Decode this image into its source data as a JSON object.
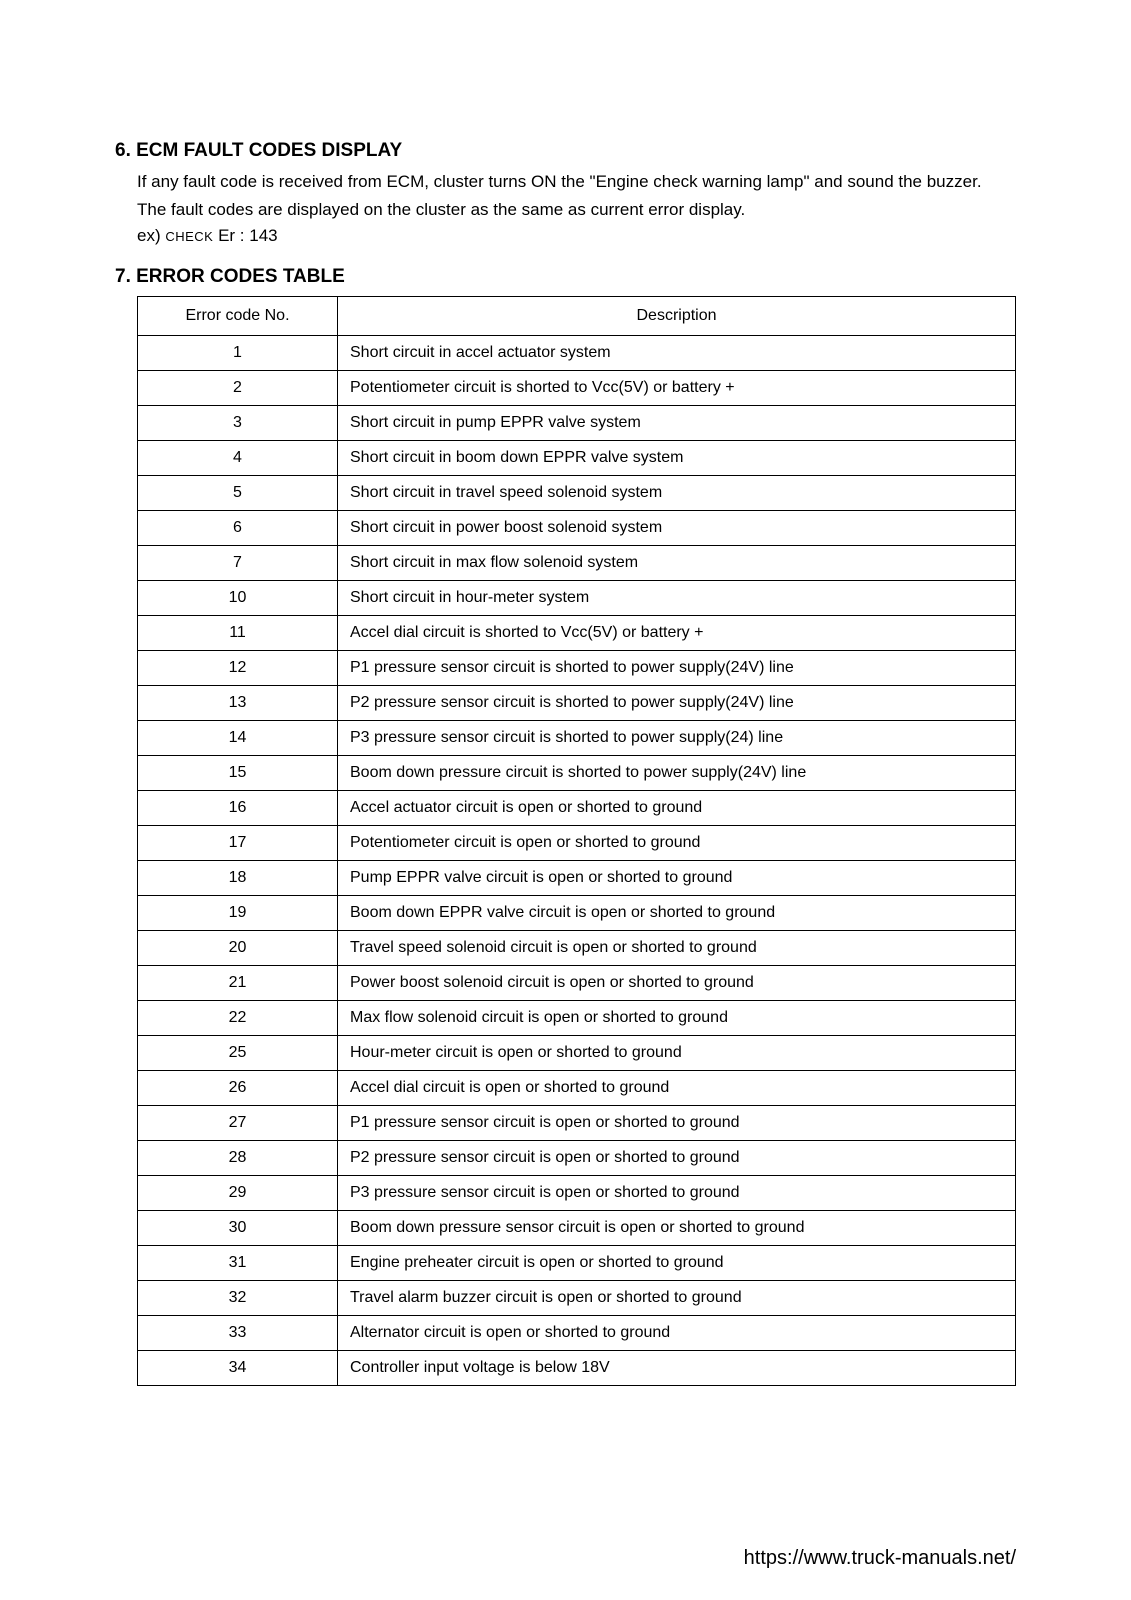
{
  "section6": {
    "heading": "6. ECM FAULT CODES DISPLAY",
    "para1": "If any fault code is received from ECM, cluster turns ON the \"Engine check warning lamp\" and sound the buzzer.",
    "para2": "The fault codes are displayed on the cluster as the same as current error display.",
    "example_prefix": "ex) ",
    "example_check": "CHECK",
    "example_rest": " Er : 143"
  },
  "section7": {
    "heading": "7. ERROR CODES TABLE",
    "columns": [
      "Error code No.",
      "Description"
    ],
    "rows": [
      [
        "1",
        "Short circuit in accel actuator system"
      ],
      [
        "2",
        "Potentiometer circuit is shorted to Vcc(5V) or battery +"
      ],
      [
        "3",
        "Short circuit in pump EPPR valve system"
      ],
      [
        "4",
        "Short circuit in boom down EPPR valve system"
      ],
      [
        "5",
        "Short circuit in travel speed solenoid system"
      ],
      [
        "6",
        "Short circuit in power boost solenoid system"
      ],
      [
        "7",
        "Short circuit in max flow solenoid system"
      ],
      [
        "10",
        "Short circuit in hour-meter system"
      ],
      [
        "11",
        "Accel dial circuit is shorted to Vcc(5V) or battery +"
      ],
      [
        "12",
        "P1 pressure sensor circuit is shorted to power supply(24V) line"
      ],
      [
        "13",
        "P2 pressure sensor circuit is shorted to power supply(24V) line"
      ],
      [
        "14",
        "P3 pressure sensor circuit is shorted to power supply(24) line"
      ],
      [
        "15",
        "Boom down pressure circuit is shorted to power supply(24V) line"
      ],
      [
        "16",
        "Accel actuator circuit is open or shorted to ground"
      ],
      [
        "17",
        "Potentiometer circuit is open or shorted to ground"
      ],
      [
        "18",
        "Pump EPPR valve circuit is open or shorted to ground"
      ],
      [
        "19",
        "Boom down EPPR valve circuit is open or shorted to ground"
      ],
      [
        "20",
        "Travel speed solenoid circuit is open or shorted to ground"
      ],
      [
        "21",
        "Power boost solenoid circuit is open or shorted to ground"
      ],
      [
        "22",
        "Max flow solenoid circuit is open or shorted to ground"
      ],
      [
        "25",
        "Hour-meter circuit is open or shorted to ground"
      ],
      [
        "26",
        "Accel dial circuit is open or shorted to ground"
      ],
      [
        "27",
        "P1 pressure sensor circuit is open or shorted to ground"
      ],
      [
        "28",
        "P2 pressure sensor circuit is open or shorted to ground"
      ],
      [
        "29",
        "P3 pressure sensor circuit is open or shorted to ground"
      ],
      [
        "30",
        "Boom down pressure sensor circuit is open or shorted to ground"
      ],
      [
        "31",
        "Engine preheater circuit is open or shorted to ground"
      ],
      [
        "32",
        "Travel alarm buzzer circuit is open or shorted to ground"
      ],
      [
        "33",
        "Alternator circuit is open or shorted to ground"
      ],
      [
        "34",
        "Controller input voltage is below 18V"
      ]
    ]
  },
  "footer": {
    "url": "https://www.truck-manuals.net/"
  }
}
